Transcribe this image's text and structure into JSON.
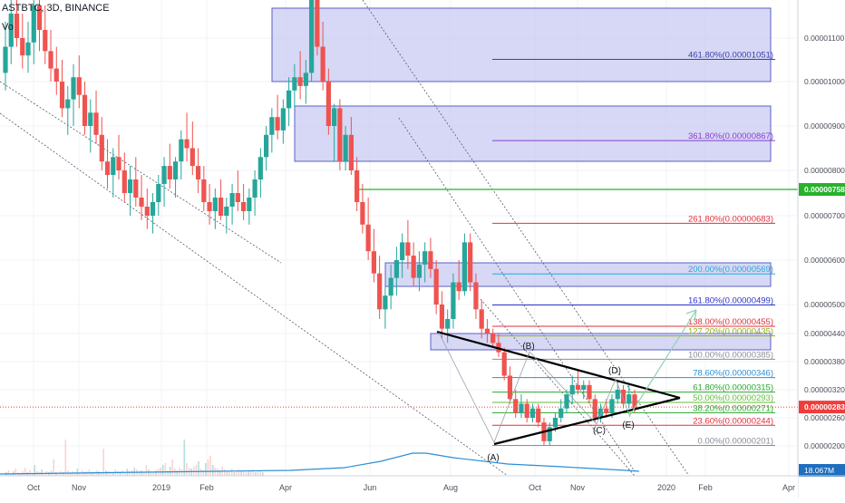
{
  "header": {
    "symbol": "ASTBTC, 3D, BINANCE",
    "vol_label": "Vo"
  },
  "colors": {
    "up": "#26a69a",
    "down": "#ef5350",
    "box_fill": "#c8cbf2",
    "box_stroke": "#5b5fc7",
    "current_price": "#ef3c3c",
    "price_758": "#27b12c",
    "volume_ma": "#2a8fd6"
  },
  "chart_data": {
    "type": "candlestick",
    "symbol": "ASTBTC",
    "interval": "3D",
    "exchange": "BINANCE",
    "x_axis_labels": [
      "Oct",
      "Nov",
      "2019",
      "Feb",
      "Apr",
      "Jun",
      "Aug",
      "Oct",
      "Nov",
      "2020",
      "Feb",
      "Apr"
    ],
    "y_ticks": [
      "0.00001100",
      "0.00001000",
      "0.00000900",
      "0.00000800",
      "0.00000700",
      "0.00000600",
      "0.00000500",
      "0.00000440",
      "0.00000380",
      "0.00000320",
      "0.00000260",
      "0.00000200"
    ],
    "y_range": [
      1.85e-06,
      1.18e-05
    ],
    "price_labels": [
      {
        "text": "0.00000758",
        "value": 7.58e-06,
        "color": "#27b12c"
      },
      {
        "text": "0.00000283",
        "value": 2.83e-06,
        "color": "#ef3c3c"
      }
    ],
    "volume_label": "18.067M",
    "fib_levels": [
      {
        "label": "461.80%(0.00001051)",
        "value": 1.051e-05,
        "color": "#3f3fa8"
      },
      {
        "label": "361.80%(0.00000867)",
        "value": 8.67e-06,
        "color": "#8a3fd1"
      },
      {
        "label": "261.80%(0.00000683)",
        "value": 6.83e-06,
        "color": "#e0303d"
      },
      {
        "label": "200.00%(0.00000569)",
        "value": 5.69e-06,
        "color": "#2aa9d6"
      },
      {
        "label": "161.80%(0.00000499)",
        "value": 4.99e-06,
        "color": "#2a35c9"
      },
      {
        "label": "138.00%(0.00000455)",
        "value": 4.55e-06,
        "color": "#e0303d"
      },
      {
        "label": "127.20%(0.00000435)",
        "value": 4.35e-06,
        "color": "#8fae1b"
      },
      {
        "label": "100.00%(0.00000385)",
        "value": 3.85e-06,
        "color": "#8a8e99"
      },
      {
        "label": "78.60%(0.00000346)",
        "value": 3.46e-06,
        "color": "#2a8fd6"
      },
      {
        "label": "61.80%(0.00000315)",
        "value": 3.15e-06,
        "color": "#27a82c"
      },
      {
        "label": "50.00%(0.00000293)",
        "value": 2.93e-06,
        "color": "#5fbf3a"
      },
      {
        "label": "38.20%(0.00000271)",
        "value": 2.71e-06,
        "color": "#27a82c"
      },
      {
        "label": "23.60%(0.00000244)",
        "value": 2.44e-06,
        "color": "#e0303d"
      },
      {
        "label": "0.00%(0.00000201)",
        "value": 2.01e-06,
        "color": "#8a8e99"
      }
    ],
    "wave_labels": [
      "(A)",
      "(B)",
      "(C)",
      "(D)",
      "(E)"
    ],
    "candles": [
      [
        1.02e-05,
        1.12e-05,
        9.8e-06,
        1.08e-05
      ],
      [
        1.08e-05,
        1.17e-05,
        1.04e-05,
        1.13e-05
      ],
      [
        1.13e-05,
        1.18e-05,
        1.08e-05,
        1.1e-05
      ],
      [
        1.1e-05,
        1.13e-05,
        1.03e-05,
        1.06e-05
      ],
      [
        1.06e-05,
        1.12e-05,
        1.02e-05,
        1.09e-05
      ],
      [
        1.09e-05,
        1.16e-05,
        1.04e-05,
        1.14e-05
      ],
      [
        1.14e-05,
        1.18e-05,
        1.07e-05,
        1.11e-05
      ],
      [
        1.11e-05,
        1.14e-05,
        1.04e-05,
        1.07e-05
      ],
      [
        1.07e-05,
        1.11e-05,
        1e-05,
        1.03e-05
      ],
      [
        1.03e-05,
        1.08e-05,
        9.7e-06,
        1e-05
      ],
      [
        1e-05,
        1.05e-05,
        9.2e-06,
        9.4e-06
      ],
      [
        9.4e-06,
        9.9e-06,
        8.8e-06,
        9.6e-06
      ],
      [
        9.6e-06,
        1.04e-05,
        9e-06,
        1.01e-05
      ],
      [
        1.01e-05,
        1.06e-05,
        9.4e-06,
        9.7e-06
      ],
      [
        9.7e-06,
        1e-05,
        8.8e-06,
        9e-06
      ],
      [
        9e-06,
        9.6e-06,
        8.4e-06,
        9.3e-06
      ],
      [
        9.3e-06,
        9.8e-06,
        8.6e-06,
        8.8e-06
      ],
      [
        8.8e-06,
        9.2e-06,
        8e-06,
        8.2e-06
      ],
      [
        8.2e-06,
        8.7e-06,
        7.6e-06,
        7.9e-06
      ],
      [
        7.9e-06,
        8.5e-06,
        7.4e-06,
        8.3e-06
      ],
      [
        8.3e-06,
        8.8e-06,
        7.8e-06,
        8e-06
      ],
      [
        8e-06,
        8.4e-06,
        7.3e-06,
        7.5e-06
      ],
      [
        7.5e-06,
        8.1e-06,
        7e-06,
        7.8e-06
      ],
      [
        7.8e-06,
        8.3e-06,
        7.2e-06,
        7.4e-06
      ],
      [
        7.4e-06,
        7.9e-06,
        6.9e-06,
        7.2e-06
      ],
      [
        7.2e-06,
        7.6e-06,
        6.7e-06,
        7e-06
      ],
      [
        7e-06,
        7.5e-06,
        6.6e-06,
        7.3e-06
      ],
      [
        7.3e-06,
        7.9e-06,
        7e-06,
        7.7e-06
      ],
      [
        7.7e-06,
        8.3e-06,
        7.2e-06,
        8.1e-06
      ],
      [
        8.1e-06,
        8.6e-06,
        7.6e-06,
        7.8e-06
      ],
      [
        7.8e-06,
        8.3e-06,
        7.4e-06,
        8.2e-06
      ],
      [
        8.2e-06,
        8.9e-06,
        7.8e-06,
        8.7e-06
      ],
      [
        8.7e-06,
        9.3e-06,
        8.2e-06,
        8.5e-06
      ],
      [
        8.5e-06,
        9.1e-06,
        7.9e-06,
        8.1e-06
      ],
      [
        8.1e-06,
        8.5e-06,
        7.5e-06,
        7.8e-06
      ],
      [
        7.8e-06,
        8.1e-06,
        7.1e-06,
        7.3e-06
      ],
      [
        7.3e-06,
        7.7e-06,
        6.8e-06,
        7.1e-06
      ],
      [
        7.1e-06,
        7.6e-06,
        6.7e-06,
        7.4e-06
      ],
      [
        7.4e-06,
        7.8e-06,
        6.9e-06,
        7e-06
      ],
      [
        7e-06,
        7.4e-06,
        6.6e-06,
        7.2e-06
      ],
      [
        7.2e-06,
        7.7e-06,
        6.8e-06,
        7.5e-06
      ],
      [
        7.5e-06,
        8e-06,
        7.1e-06,
        7.3e-06
      ],
      [
        7.3e-06,
        7.7e-06,
        6.9e-06,
        7.1e-06
      ],
      [
        7.1e-06,
        7.6e-06,
        6.8e-06,
        7.4e-06
      ],
      [
        7.4e-06,
        8e-06,
        7e-06,
        7.8e-06
      ],
      [
        7.8e-06,
        8.5e-06,
        7.4e-06,
        8.3e-06
      ],
      [
        8.3e-06,
        9e-06,
        8e-06,
        8.8e-06
      ],
      [
        8.8e-06,
        9.4e-06,
        8.4e-06,
        9.2e-06
      ],
      [
        9.2e-06,
        9.7e-06,
        8.7e-06,
        8.9e-06
      ],
      [
        8.9e-06,
        9.6e-06,
        8.6e-06,
        9.4e-06
      ],
      [
        9.4e-06,
        1.01e-05,
        9e-06,
        9.8e-06
      ],
      [
        9.8e-06,
        1.04e-05,
        9.4e-06,
        1.01e-05
      ],
      [
        1.01e-05,
        1.07e-05,
        9.6e-06,
        9.9e-06
      ],
      [
        9.9e-06,
        1.05e-05,
        9.5e-06,
        1.02e-05
      ],
      [
        1.02e-05,
        1.18e-05,
        1e-05,
        1.16e-05
      ],
      [
        1.16e-05,
        1.18e-05,
        1.06e-05,
        1.08e-05
      ],
      [
        1.08e-05,
        1.12e-05,
        9.8e-06,
        1e-05
      ],
      [
        1e-05,
        1.03e-05,
        8.8e-06,
        9e-06
      ],
      [
        9e-06,
        9.5e-06,
        8.2e-06,
        9.4e-06
      ],
      [
        9.4e-06,
        9.6e-06,
        8e-06,
        8.2e-06
      ],
      [
        8.2e-06,
        9e-06,
        8e-06,
        8.8e-06
      ],
      [
        8.8e-06,
        9.2e-06,
        7.9e-06,
        8e-06
      ],
      [
        8e-06,
        8.3e-06,
        7.1e-06,
        7.3e-06
      ],
      [
        7.3e-06,
        7.7e-06,
        6.6e-06,
        6.8e-06
      ],
      [
        6.8e-06,
        7.4e-06,
        6e-06,
        6.2e-06
      ],
      [
        6.2e-06,
        6.7e-06,
        5.5e-06,
        5.7e-06
      ],
      [
        5.7e-06,
        6.1e-06,
        4.7e-06,
        4.9e-06
      ],
      [
        4.9e-06,
        5.4e-06,
        4.5e-06,
        5.2e-06
      ],
      [
        5.2e-06,
        5.9e-06,
        4.9e-06,
        5.6e-06
      ],
      [
        5.6e-06,
        6.3e-06,
        5.2e-06,
        6e-06
      ],
      [
        6e-06,
        6.6e-06,
        5.6e-06,
        6.4e-06
      ],
      [
        6.4e-06,
        6.9e-06,
        5.8e-06,
        6.1e-06
      ],
      [
        6.1e-06,
        6.4e-06,
        5.4e-06,
        5.6e-06
      ],
      [
        5.6e-06,
        6.2e-06,
        5.3e-06,
        5.9e-06
      ],
      [
        5.9e-06,
        6.4e-06,
        5.5e-06,
        6.2e-06
      ],
      [
        6.2e-06,
        6.5e-06,
        5.6e-06,
        5.8e-06
      ],
      [
        5.8e-06,
        6e-06,
        4.8e-06,
        5e-06
      ],
      [
        5e-06,
        5.3e-06,
        4.3e-06,
        4.5e-06
      ],
      [
        4.5e-06,
        4.9e-06,
        4.2e-06,
        4.7e-06
      ],
      [
        4.7e-06,
        5.7e-06,
        4.5e-06,
        5.5e-06
      ],
      [
        5.5e-06,
        6e-06,
        5.1e-06,
        5.3e-06
      ],
      [
        5.3e-06,
        6.6e-06,
        5.2e-06,
        6.4e-06
      ],
      [
        6.4e-06,
        6.6e-06,
        5.3e-06,
        5.5e-06
      ],
      [
        5.5e-06,
        5.7e-06,
        4.7e-06,
        4.9e-06
      ],
      [
        4.9e-06,
        5.1e-06,
        4.3e-06,
        4.5e-06
      ],
      [
        4.5e-06,
        4.7e-06,
        4.2e-06,
        4.4e-06
      ],
      [
        4.4e-06,
        4.5e-06,
        4.1e-06,
        4.2e-06
      ],
      [
        4.2e-06,
        4.4e-06,
        3.9e-06,
        4e-06
      ],
      [
        4e-06,
        4.1e-06,
        3.4e-06,
        3.5e-06
      ],
      [
        3.5e-06,
        3.7e-06,
        2.9e-06,
        3e-06
      ],
      [
        3e-06,
        3.2e-06,
        2.6e-06,
        2.7e-06
      ],
      [
        2.7e-06,
        3.1e-06,
        2.6e-06,
        2.9e-06
      ],
      [
        2.9e-06,
        3e-06,
        2.5e-06,
        2.6e-06
      ],
      [
        2.6e-06,
        2.9e-06,
        2.5e-06,
        2.8e-06
      ],
      [
        2.8e-06,
        2.9e-06,
        2.4e-06,
        2.5e-06
      ],
      [
        2.5e-06,
        2.6e-06,
        2e-06,
        2.1e-06
      ],
      [
        2.1e-06,
        2.5e-06,
        2e-06,
        2.4e-06
      ],
      [
        2.4e-06,
        2.7e-06,
        2.3e-06,
        2.6e-06
      ],
      [
        2.6e-06,
        3e-06,
        2.5e-06,
        2.8e-06
      ],
      [
        2.8e-06,
        3.2e-06,
        2.7e-06,
        3.1e-06
      ],
      [
        3.1e-06,
        3.5e-06,
        2.9e-06,
        3.3e-06
      ],
      [
        3.3e-06,
        3.6e-06,
        3.1e-06,
        3.2e-06
      ],
      [
        3.2e-06,
        3.4e-06,
        3e-06,
        3.3e-06
      ],
      [
        3.3e-06,
        3.4e-06,
        2.9e-06,
        3e-06
      ],
      [
        3e-06,
        3.1e-06,
        2.5e-06,
        2.6e-06
      ],
      [
        2.6e-06,
        2.9e-06,
        2.5e-06,
        2.8e-06
      ],
      [
        2.8e-06,
        3e-06,
        2.6e-06,
        2.7e-06
      ],
      [
        2.7e-06,
        3.1e-06,
        2.6e-06,
        3e-06
      ],
      [
        3e-06,
        3.4e-06,
        2.9e-06,
        3.2e-06
      ],
      [
        3.2e-06,
        3.3e-06,
        2.8e-06,
        2.9e-06
      ],
      [
        2.9e-06,
        3.3e-06,
        2.8e-06,
        3.1e-06
      ],
      [
        3.1e-06,
        3.2e-06,
        2.7e-06,
        2.8e-06
      ]
    ]
  }
}
